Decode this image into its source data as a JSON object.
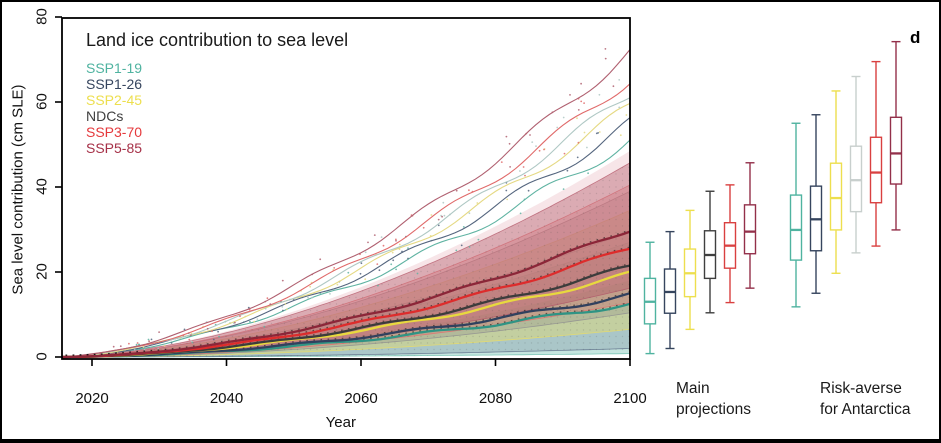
{
  "panel_label": "d",
  "title": "Land ice contribution to sea level",
  "axes": {
    "ylabel": "Sea level contribution (cm SLE)",
    "xlabel": "Year",
    "yticks": [
      0,
      20,
      40,
      60,
      80
    ],
    "xticks": [
      2020,
      2040,
      2060,
      2080,
      2100
    ],
    "xrange": [
      2015,
      2100
    ],
    "yrange": [
      0,
      84
    ],
    "grid": false
  },
  "chart_data": {
    "type": "line+box",
    "title": "Land ice contribution to sea level",
    "xlabel": "Year",
    "ylabel": "Sea level contribution (cm SLE)",
    "x_start_year": 2015,
    "x_end_year": 2100,
    "value_at_start": 0,
    "legend_position": "top-left inside plot",
    "scenarios": [
      {
        "label": "SSP1-19",
        "color": "#4FB3A0",
        "median_color": "#2F9484",
        "median_2100": 12.5,
        "band_2100": [
          0.8,
          27.0
        ],
        "band_color": "#6FBFAE",
        "band_opacity": 0.4,
        "upper_line_2100": 51.0,
        "upper_line_color": "#5FB3A2"
      },
      {
        "label": "SSP1-26",
        "color": "#36455E",
        "median_color": "#31415E",
        "median_2100": 14.6,
        "band_2100": [
          2.0,
          29.5
        ],
        "band_color": "#5E7089",
        "band_opacity": 0.26,
        "upper_line_2100": 55.0,
        "upper_line_color": "#54657E"
      },
      {
        "label": "SSP2-45",
        "color": "#EDDF4E",
        "median_color": "#E8D93E",
        "median_2100": 19.6,
        "band_2100": [
          6.5,
          34.5
        ],
        "band_color": "#E7DC6A",
        "band_opacity": 0.42,
        "upper_line_2100": 59.0,
        "upper_line_color": "#E5D983"
      },
      {
        "label": "NDCs",
        "color": "#3F3F3F",
        "median_color": "#3C3C3C",
        "median_2100": 21.3,
        "band_2100": [
          10.4,
          39.0
        ],
        "band_color": "#909090",
        "band_opacity": 0.32,
        "upper_line_2100": 62.0,
        "upper_line_color": "#AFC8C4"
      },
      {
        "label": "SSP3-70",
        "color": "#E5393C",
        "median_color": "#DD2C2C",
        "median_2100": 25.7,
        "band_2100": [
          12.8,
          40.5
        ],
        "band_color": "#E17070",
        "band_opacity": 0.34,
        "upper_line_2100": 65.5,
        "upper_line_color": "#E06A6A"
      },
      {
        "label": "SSP5-85",
        "color": "#A63148",
        "median_color": "#8C2638",
        "median_2100": 30.0,
        "band_2100": [
          16.2,
          45.7
        ],
        "band_color": "#B25A6B",
        "band_opacity": 0.45,
        "upper_line_2100": 72.0,
        "upper_line_color": "#B06070"
      }
    ],
    "halo_band": {
      "band_2100": [
        18.0,
        48.5
      ],
      "color": "#D98A96",
      "opacity": 0.22
    },
    "boxplot_groups": [
      {
        "label_lines": [
          "Main",
          "projections"
        ],
        "boxes": [
          {
            "scenario": "SSP1-19",
            "color": "#4FB3A0",
            "whisker_low": 0.8,
            "q1": 7.8,
            "median": 13.0,
            "q3": 18.5,
            "whisker_high": 27.0
          },
          {
            "scenario": "SSP1-26",
            "color": "#36455E",
            "whisker_low": 2.0,
            "q1": 10.3,
            "median": 15.3,
            "q3": 20.7,
            "whisker_high": 29.5
          },
          {
            "scenario": "SSP2-45",
            "color": "#EDDF4E",
            "whisker_low": 6.5,
            "q1": 14.2,
            "median": 19.7,
            "q3": 25.4,
            "whisker_high": 34.5
          },
          {
            "scenario": "NDCs",
            "color": "#3F3F3F",
            "whisker_low": 10.4,
            "q1": 18.5,
            "median": 24.0,
            "q3": 29.7,
            "whisker_high": 39.0
          },
          {
            "scenario": "SSP3-70",
            "color": "#D94040",
            "whisker_low": 12.8,
            "q1": 20.9,
            "median": 26.2,
            "q3": 31.6,
            "whisker_high": 40.5
          },
          {
            "scenario": "SSP5-85",
            "color": "#93304A",
            "whisker_low": 16.2,
            "q1": 24.3,
            "median": 29.5,
            "q3": 35.8,
            "whisker_high": 45.7
          }
        ]
      },
      {
        "label_lines": [
          "Risk-averse",
          "for Antarctica"
        ],
        "boxes": [
          {
            "scenario": "SSP1-19",
            "color": "#4FB3A0",
            "whisker_low": 11.8,
            "q1": 22.8,
            "median": 29.9,
            "q3": 38.1,
            "whisker_high": 55.0
          },
          {
            "scenario": "SSP1-26",
            "color": "#36455E",
            "whisker_low": 15.0,
            "q1": 25.0,
            "median": 32.4,
            "q3": 40.2,
            "whisker_high": 57.0
          },
          {
            "scenario": "SSP2-45",
            "color": "#EDDF4E",
            "whisker_low": 19.7,
            "q1": 29.9,
            "median": 37.4,
            "q3": 45.6,
            "whisker_high": 62.6
          },
          {
            "scenario": "NDCs",
            "color": "#C8CFCD",
            "whisker_low": 24.5,
            "q1": 34.2,
            "median": 41.6,
            "q3": 49.6,
            "whisker_high": 66.0
          },
          {
            "scenario": "SSP3-70",
            "color": "#D94040",
            "whisker_low": 26.1,
            "q1": 36.3,
            "median": 43.4,
            "q3": 51.7,
            "whisker_high": 69.5
          },
          {
            "scenario": "SSP5-85",
            "color": "#93304A",
            "whisker_low": 29.9,
            "q1": 40.7,
            "median": 47.9,
            "q3": 56.4,
            "whisker_high": 74.2
          }
        ]
      }
    ]
  }
}
